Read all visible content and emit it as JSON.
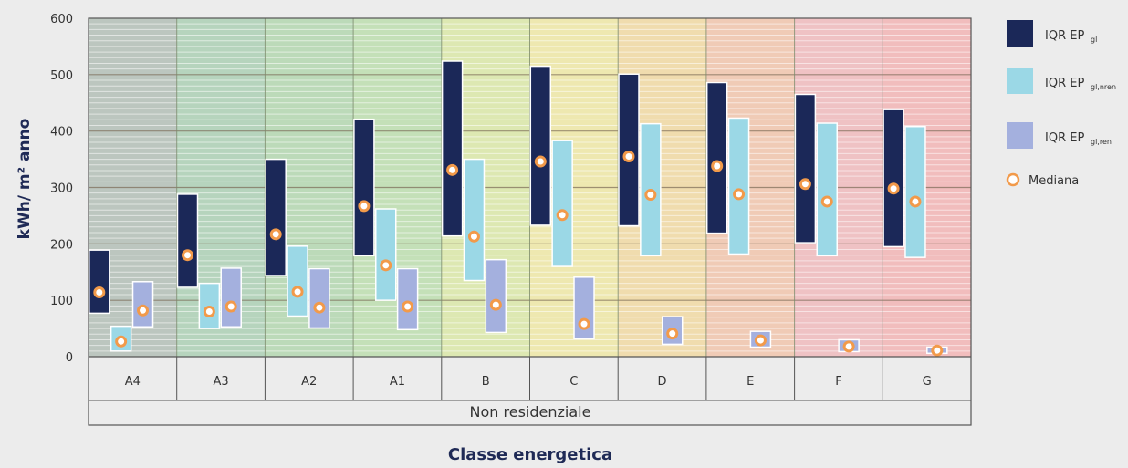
{
  "chart_data": {
    "type": "box",
    "ylabel": "kWh/ m² anno",
    "xlabel": "Classe energetica",
    "group_label": "Non residenziale",
    "ylim": [
      0,
      600
    ],
    "yticks": [
      0,
      100,
      200,
      300,
      400,
      500,
      600
    ],
    "categories": [
      "A4",
      "A3",
      "A2",
      "A1",
      "B",
      "C",
      "D",
      "E",
      "F",
      "G"
    ],
    "band_colors": [
      "#bcc6bf",
      "#b6d4bd",
      "#bcdab9",
      "#c4e0b8",
      "#dde8b2",
      "#eee8b0",
      "#f0dcae",
      "#f0cbb6",
      "#efc2c4",
      "#f1bdbd"
    ],
    "series": [
      {
        "key": "gl",
        "legend_main": "IQR  EP",
        "legend_sub": "gl",
        "color": "#1b2858",
        "q1": [
          77,
          123,
          144,
          179,
          214,
          233,
          232,
          219,
          202,
          195
        ],
        "q3": [
          189,
          288,
          350,
          421,
          524,
          515,
          501,
          486,
          465,
          438
        ],
        "median": [
          114,
          180,
          217,
          267,
          331,
          346,
          355,
          338,
          306,
          298
        ]
      },
      {
        "key": "gl_nren",
        "legend_main": "IQR  EP",
        "legend_sub": "gl,nren",
        "color": "#9bd8e6",
        "q1": [
          10,
          50,
          72,
          100,
          135,
          160,
          179,
          182,
          179,
          176
        ],
        "q3": [
          54,
          130,
          196,
          262,
          350,
          383,
          413,
          423,
          414,
          408
        ],
        "median": [
          27,
          80,
          115,
          162,
          213,
          251,
          287,
          288,
          275,
          275
        ]
      },
      {
        "key": "gl_ren",
        "legend_main": "IQR  EP",
        "legend_sub": "gl,ren",
        "color": "#a4b0de",
        "q1": [
          53,
          53,
          51,
          48,
          43,
          32,
          22,
          17,
          9,
          6
        ],
        "q3": [
          133,
          157,
          156,
          156,
          172,
          141,
          71,
          45,
          30,
          17
        ],
        "median": [
          82,
          89,
          87,
          89,
          92,
          58,
          41,
          29,
          18,
          11
        ]
      }
    ],
    "median_legend": "Mediana",
    "median_color": "#f29a4a",
    "grid": true,
    "legend_position": "right"
  }
}
